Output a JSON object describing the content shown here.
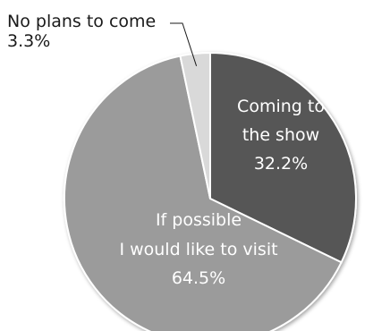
{
  "chart_data": {
    "type": "pie",
    "slices": [
      {
        "label_lines": [
          "Coming to",
          "the show"
        ],
        "value_text": "32.2%",
        "value": 32.2,
        "color": "#575757"
      },
      {
        "label_lines": [
          "If possible",
          "I would like to visit"
        ],
        "value_text": "64.5%",
        "value": 64.5,
        "color": "#9b9b9b"
      },
      {
        "label_lines": [
          "No plans to come"
        ],
        "value_text": "3.3%",
        "value": 3.3,
        "color": "#d9d9d9"
      }
    ],
    "start": "12 o'clock",
    "direction": "clockwise",
    "legend": "none",
    "slice_border_color": "#ffffff"
  }
}
